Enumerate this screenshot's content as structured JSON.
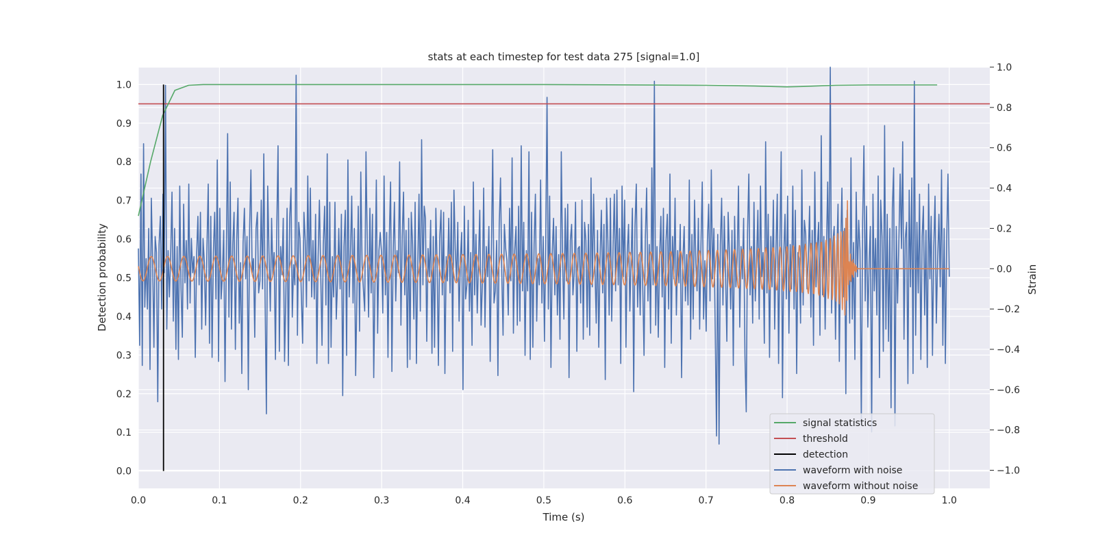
{
  "chart_data": {
    "type": "line",
    "title": "stats at each timestep for test data 275 [signal=1.0]",
    "xlabel": "Time (s)",
    "ylabel_left": "Detection probability",
    "ylabel_right": "Strain",
    "xlim": [
      0.0,
      1.05
    ],
    "ylim_left": [
      -0.045,
      1.045
    ],
    "ylim_right": [
      -1.09,
      1.0
    ],
    "grid": true,
    "legend_position": "lower right",
    "x_ticks": [
      "0.0",
      "0.1",
      "0.2",
      "0.3",
      "0.4",
      "0.5",
      "0.6",
      "0.7",
      "0.8",
      "0.9",
      "1.0"
    ],
    "left_ticks": [
      "0.0",
      "0.1",
      "0.2",
      "0.3",
      "0.4",
      "0.5",
      "0.6",
      "0.7",
      "0.8",
      "0.9",
      "1.0"
    ],
    "right_ticks": [
      "−1.0",
      "−0.8",
      "−0.6",
      "−0.4",
      "−0.2",
      "0.0",
      "0.2",
      "0.4",
      "0.6",
      "0.8",
      "1.0"
    ],
    "series": [
      {
        "name": "signal statistics",
        "axis": "left",
        "color": "#55a868",
        "x": [
          0.0,
          0.015,
          0.03,
          0.045,
          0.062,
          0.08,
          0.1,
          0.3,
          0.5,
          0.7,
          0.76,
          0.8,
          0.82,
          0.86,
          0.9,
          0.985
        ],
        "y": [
          0.66,
          0.8,
          0.92,
          0.985,
          0.998,
          1.0,
          1.0,
          1.0,
          1.0,
          0.998,
          0.996,
          0.994,
          0.995,
          0.998,
          0.999,
          0.999
        ]
      },
      {
        "name": "threshold",
        "axis": "left",
        "color": "#c44e52",
        "x": [
          0.0,
          1.05
        ],
        "y": [
          0.95,
          0.95
        ]
      },
      {
        "name": "detection",
        "axis": "left",
        "color": "#000000",
        "x": [
          0.031,
          0.031
        ],
        "y": [
          0.0,
          1.0
        ]
      },
      {
        "name": "waveform with noise",
        "axis": "right",
        "color": "#4c72b0",
        "x_start": 0.0,
        "x_end": 1.0,
        "y": [
          0.1,
          -0.38,
          0.47,
          -0.48,
          0.62,
          -0.19,
          0.05,
          -0.2,
          0.2,
          -0.5,
          0.35,
          0.04,
          -0.39,
          0.16,
          0.08,
          -0.66,
          0.12,
          0.26,
          -0.2,
          0.37,
          -0.02,
          0.91,
          -0.3,
          0.09,
          -0.14,
          0.07,
          0.38,
          -0.26,
          0.2,
          -0.4,
          0.11,
          -0.45,
          0.41,
          -0.1,
          -0.34,
          0.32,
          -0.07,
          0.14,
          -0.2,
          0.42,
          -0.17,
          0.15,
          -0.02,
          0.06,
          -0.44,
          0.06,
          0.26,
          -0.08,
          0.28,
          -0.3,
          0.15,
          0.03,
          -0.28,
          0.1,
          0.42,
          -0.37,
          0.26,
          -0.44,
          0.08,
          0.28,
          -0.15,
          0.54,
          -0.46,
          0.3,
          -0.15,
          -0.03,
          0.19,
          -0.56,
          0.06,
          0.67,
          -0.24,
          0.43,
          -0.3,
          0.12,
          0.28,
          -0.4,
          0.14,
          0.35,
          -0.27,
          0.03,
          -0.52,
          0.13,
          0.3,
          -0.05,
          0.16,
          -0.6,
          0.2,
          0.49,
          -0.02,
          0.05,
          -0.34,
          0.2,
          0.28,
          -0.12,
          -0.06,
          0.34,
          -0.1,
          0.57,
          -0.15,
          -0.72,
          0.41,
          0.08,
          -0.21,
          0.25,
          -0.03,
          0.08,
          -0.45,
          0.19,
          0.61,
          -0.41,
          0.11,
          -0.03,
          0.25,
          -0.46,
          -0.15,
          0.3,
          -0.48,
          0.25,
          0.4,
          -0.24,
          0.02,
          -0.08,
          0.96,
          -0.33,
          0.23,
          0.15,
          -0.14,
          -0.37,
          0.28,
          0.14,
          -0.19,
          0.46,
          -0.06,
          0.4,
          -0.14,
          0.14,
          -0.15,
          0.27,
          -0.47,
          0.06,
          0.34,
          -0.02,
          -0.38,
          0.12,
          0.31,
          -0.18,
          0.57,
          -0.47,
          0.33,
          -0.39,
          0.06,
          -0.14,
          0.33,
          -0.25,
          -0.06,
          0.2,
          -0.1,
          0.27,
          -0.63,
          0.11,
          0.29,
          -0.43,
          0.54,
          -0.14,
          0.08,
          0.36,
          -0.17,
          0.2,
          -0.53,
          -0.11,
          0.31,
          -0.31,
          0.48,
          0.02,
          -0.1,
          -0.21,
          0.58,
          0.11,
          -0.24,
          0.3,
          -0.12,
          0.27,
          -0.54,
          -0.06,
          0.44,
          -0.32,
          0.09,
          0.18,
          0.08,
          -0.22,
          0.46,
          -0.13,
          0.18,
          -0.44,
          0.15,
          0.43,
          -0.51,
          0.07,
          0.33,
          -0.16,
          0.09,
          -0.02,
          0.53,
          -0.28,
          0.16,
          0.38,
          -0.13,
          0.19,
          -0.49,
          0.25,
          -0.45,
          0.28,
          0.12,
          -0.25,
          0.33,
          -0.47,
          0.0,
          0.37,
          -0.21,
          0.64,
          -0.08,
          0.31,
          0.25,
          -0.36,
          0.1,
          -0.04,
          0.24,
          -0.42,
          0.16,
          -0.39,
          0.3,
          0.02,
          -0.48,
          0.15,
          0.29,
          -0.13,
          0.28,
          -0.52,
          0.06,
          -0.06,
          0.25,
          -0.12,
          0.33,
          -0.41,
          0.39,
          0.1,
          -0.06,
          0.23,
          -0.26,
          0.05,
          0.18,
          -0.6,
          0.31,
          -0.15,
          -0.08,
          0.24,
          -0.21,
          0.08,
          -0.38,
          0.43,
          -0.13,
          0.17,
          -0.22,
          0.05,
          0.29,
          -0.28,
          -0.07,
          0.4,
          -0.29,
          0.11,
          -0.04,
          0.21,
          -0.46,
          0.09,
          0.59,
          -0.17,
          -0.11,
          0.14,
          -0.53,
          0.22,
          0.45,
          -0.02,
          -0.33,
          0.22,
          0.1,
          0.04,
          -0.23,
          0.3,
          -0.06,
          0.55,
          -0.32,
          0.09,
          0.21,
          -0.28,
          0.31,
          -0.26,
          0.61,
          -0.11,
          0.23,
          -0.43,
          0.09,
          -0.11,
          0.58,
          -0.45,
          0.28,
          -0.39,
          0.12,
          0.37,
          -0.26,
          0.05,
          -0.08,
          0.44,
          -0.17,
          0.16,
          -0.36,
          0.13,
          0.85,
          -0.2,
          0.36,
          -0.49,
          0.08,
          0.25,
          -0.13,
          0.21,
          -0.23,
          0.07,
          -0.35,
          0.58,
          0.04,
          -0.25,
          0.3,
          -0.06,
          0.32,
          -0.54,
          0.14,
          0.22,
          -0.13,
          -0.02,
          0.33,
          -0.41,
          0.1,
          0.11,
          -0.17,
          0.34,
          -0.35,
          0.23,
          0.14,
          -0.29,
          0.22,
          -0.33,
          0.45,
          -0.09,
          0.37,
          0.01,
          -0.27,
          0.19,
          -0.39,
          0.05,
          0.29,
          -0.12,
          0.22,
          -0.55,
          0.35,
          0.14,
          -0.23,
          0.35,
          -0.26,
          0.09,
          0.37,
          -0.11,
          0.39,
          -0.08,
          0.2,
          -0.47,
          0.41,
          -0.04,
          0.34,
          -0.39,
          0.08,
          0.22,
          -0.21,
          0.04,
          0.3,
          -0.61,
          0.21,
          0.42,
          -0.19,
          0.07,
          -0.23,
          0.3,
          -0.09,
          -0.43,
          0.15,
          0.4,
          -0.16,
          0.12,
          -0.32,
          0.5,
          -0.08,
          0.93,
          -0.28,
          0.11,
          -0.34,
          0.05,
          0.26,
          -0.14,
          0.3,
          -0.49,
          0.14,
          0.27,
          -0.2,
          0.47,
          -0.37,
          0.16,
          -0.05,
          0.35,
          -0.23,
          0.09,
          -0.07,
          0.22,
          -0.54,
          0.04,
          0.21,
          -0.16,
          0.07,
          -0.18,
          0.44,
          -0.35,
          0.17,
          -0.25,
          0.34,
          0.03,
          -0.11,
          0.25,
          -0.3,
          0.12,
          0.43,
          -0.25,
          0.04,
          -0.31,
          0.14,
          0.32,
          -0.16,
          0.49,
          -0.05,
          0.2,
          -0.3,
          -0.83,
          0.17,
          -0.87,
          0.12,
          0.35,
          -0.18,
          0.26,
          -0.03,
          -0.36,
          0.28,
          0.08,
          -0.2,
          0.19,
          -0.48,
          0.26,
          -0.09,
          0.06,
          0.41,
          -0.29,
          0.11,
          -0.05,
          0.25,
          -0.43,
          -0.71,
          0.18,
          0.47,
          -0.13,
          0.11,
          -0.27,
          0.33,
          -0.16,
          0.04,
          0.29,
          -0.25,
          0.41,
          -0.04,
          0.08,
          -0.37,
          0.63,
          -0.12,
          0.27,
          -0.44,
          0.16,
          -0.09,
          0.34,
          -0.3,
          0.1,
          0.37,
          -0.47,
          0.13,
          0.58,
          -0.64,
          0.06,
          0.27,
          -0.15,
          0.36,
          -0.32,
          0.12,
          -0.1,
          0.41,
          -0.2,
          0.29,
          -0.52,
          0.08,
          0.05,
          -0.27,
          0.49,
          -0.18,
          0.24,
          0.17,
          -0.1,
          0.05,
          0.31,
          -0.24,
          0.19,
          -0.38,
          0.48,
          -0.09,
          0.11,
          0.23,
          -0.33,
          0.66,
          -0.13,
          0.16,
          -0.3,
          0.07,
          0.43,
          -0.05,
          1.0,
          -0.22,
          0.13,
          0.21,
          -0.35,
          0.06,
          0.32,
          -0.46,
          0.1,
          0.4,
          -0.14,
          0.2,
          -0.62,
          0.29,
          0.02,
          -0.27,
          0.55,
          -0.25,
          0.13,
          -0.45,
          0.38,
          -0.04,
          0.24,
          0.09,
          -0.77,
          0.23,
          0.61,
          -0.16,
          0.31,
          -0.29,
          0.04,
          0.21,
          -0.81,
          0.37,
          -0.11,
          0.15,
          -0.23,
          0.46,
          -0.54,
          0.34,
          0.16,
          -0.41,
          0.71,
          -0.3,
          0.27,
          -0.36,
          0.2,
          -0.69,
          0.3,
          0.5,
          -0.78,
          0.21,
          -0.17,
          0.13,
          0.47,
          0.1,
          0.63,
          -0.35,
          0.15,
          0.23,
          -0.57,
          0.39,
          -0.09,
          0.45,
          -0.52,
          0.93,
          -0.33,
          0.23,
          -0.12,
          0.37,
          -0.45,
          0.16,
          0.31,
          -0.23,
          0.19,
          -0.49,
          0.42,
          -0.05,
          0.26,
          -0.43,
          0.11,
          0.36,
          -0.27,
          0.04,
          0.27,
          -0.09,
          0.49,
          -0.38,
          0.2,
          -0.47,
          0.13,
          0.47,
          -0.04
        ]
      },
      {
        "name": "waveform without noise",
        "axis": "right",
        "color": "#dd8452"
      }
    ]
  }
}
